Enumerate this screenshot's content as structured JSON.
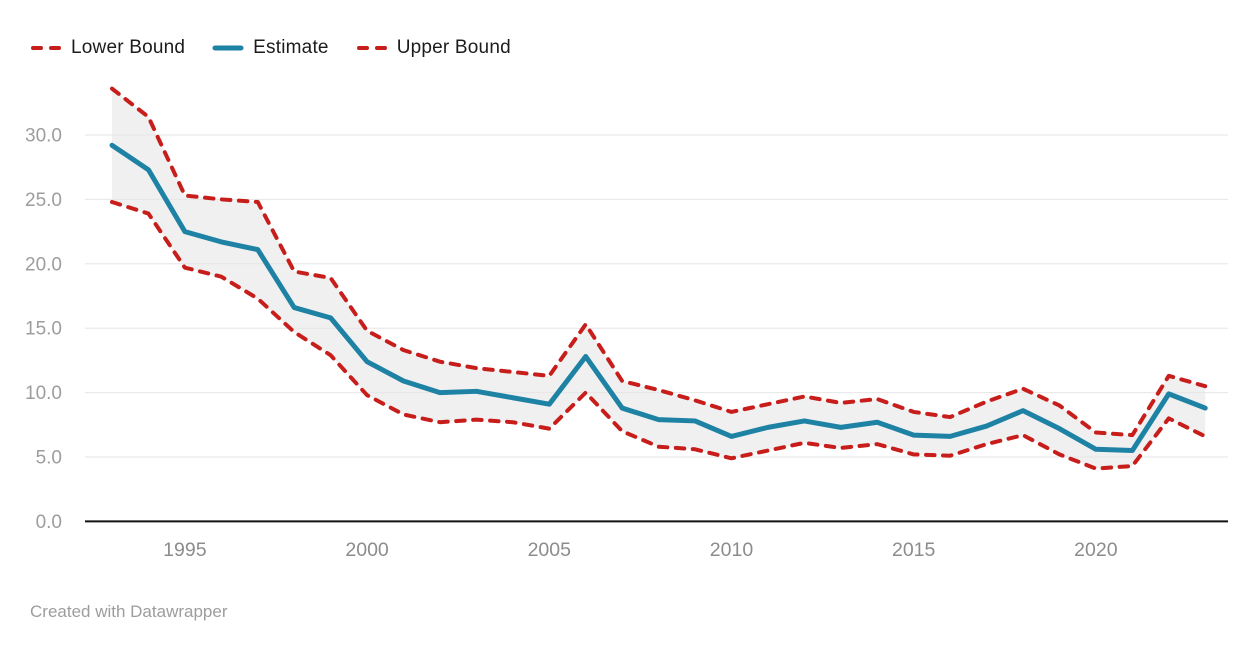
{
  "legend": {
    "items": [
      {
        "label": "Lower Bound",
        "style": "dashed",
        "color": "#c71d1b"
      },
      {
        "label": "Estimate",
        "style": "solid",
        "color": "#1e82a4"
      },
      {
        "label": "Upper Bound",
        "style": "dashed",
        "color": "#c71d1b"
      }
    ]
  },
  "footer": {
    "credit": "Created with Datawrapper"
  },
  "chart_data": {
    "type": "line",
    "title": "",
    "xlabel": "",
    "ylabel": "",
    "x": [
      1993,
      1994,
      1995,
      1996,
      1997,
      1998,
      1999,
      2000,
      2001,
      2002,
      2003,
      2004,
      2005,
      2006,
      2007,
      2008,
      2009,
      2010,
      2011,
      2012,
      2013,
      2014,
      2015,
      2016,
      2017,
      2018,
      2019,
      2020,
      2021,
      2022,
      2023
    ],
    "series": [
      {
        "name": "Lower Bound",
        "style": "dashed",
        "color": "#c71d1b",
        "values": [
          24.8,
          23.9,
          19.7,
          19.0,
          17.3,
          14.7,
          12.9,
          9.8,
          8.3,
          7.7,
          7.9,
          7.7,
          7.2,
          10.0,
          7.0,
          5.8,
          5.6,
          4.9,
          5.5,
          6.1,
          5.7,
          6.0,
          5.2,
          5.1,
          6.0,
          6.7,
          5.2,
          4.1,
          4.3,
          8.0,
          6.6
        ]
      },
      {
        "name": "Estimate",
        "style": "solid",
        "color": "#1e82a4",
        "values": [
          29.2,
          27.3,
          22.5,
          21.7,
          21.1,
          16.6,
          15.8,
          12.4,
          10.9,
          10.0,
          10.1,
          9.6,
          9.1,
          12.8,
          8.8,
          7.9,
          7.8,
          6.6,
          7.3,
          7.8,
          7.3,
          7.7,
          6.7,
          6.6,
          7.4,
          8.6,
          7.2,
          5.6,
          5.5,
          9.9,
          8.8
        ]
      },
      {
        "name": "Upper Bound",
        "style": "dashed",
        "color": "#c71d1b",
        "values": [
          33.6,
          31.4,
          25.3,
          25.0,
          24.8,
          19.4,
          18.9,
          14.8,
          13.3,
          12.4,
          11.9,
          11.6,
          11.3,
          15.3,
          10.9,
          10.2,
          9.4,
          8.5,
          9.1,
          9.7,
          9.2,
          9.5,
          8.5,
          8.1,
          9.3,
          10.3,
          9.0,
          6.9,
          6.7,
          11.3,
          10.5
        ]
      }
    ],
    "band": {
      "between": [
        "Lower Bound",
        "Upper Bound"
      ],
      "fill": "#f0f0f0"
    },
    "ylim": [
      0,
      35
    ],
    "yticks": [
      0,
      5,
      10,
      15,
      20,
      25,
      30
    ],
    "ytick_labels": [
      "0.0",
      "5.0",
      "10.0",
      "15.0",
      "20.0",
      "25.0",
      "30.0"
    ],
    "xticks": [
      1995,
      2000,
      2005,
      2010,
      2015,
      2020
    ],
    "grid": "horizontal",
    "legend_position": "top-left",
    "colors": {
      "estimate": "#1e82a4",
      "bounds": "#c71d1b",
      "band": "#f0f0f0",
      "gridline": "#e6e6e6",
      "axis": "#111111",
      "y_tick_text": "#9d9d9d",
      "x_tick_text": "#8c8c8c"
    }
  }
}
